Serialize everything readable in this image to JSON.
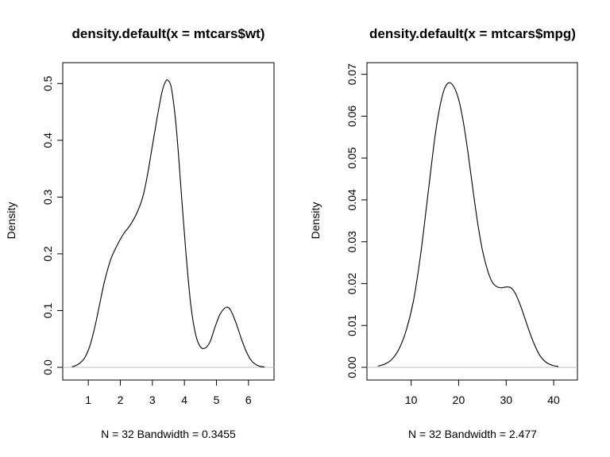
{
  "chart_data": [
    {
      "type": "line",
      "title": "density.default(x = mtcars$wt)",
      "xlabel": "N = 32   Bandwidth = 0.3455",
      "ylabel": "Density",
      "xlim": [
        0.5,
        6.5
      ],
      "ylim": [
        0,
        0.52
      ],
      "xticks": [
        1,
        2,
        3,
        4,
        5,
        6
      ],
      "yticks": [
        0.0,
        0.1,
        0.2,
        0.3,
        0.4,
        0.5
      ],
      "xtick_labels": [
        "1",
        "2",
        "3",
        "4",
        "5",
        "6"
      ],
      "ytick_labels": [
        "0.0",
        "0.1",
        "0.2",
        "0.3",
        "0.4",
        "0.5"
      ],
      "zero_line": true,
      "grid": false,
      "series": [
        {
          "x": [
            0.49,
            0.6,
            0.75,
            0.9,
            1.05,
            1.2,
            1.35,
            1.5,
            1.7,
            1.9,
            2.1,
            2.3,
            2.5,
            2.7,
            2.85,
            3.0,
            3.15,
            3.3,
            3.4,
            3.48,
            3.6,
            3.75,
            3.9,
            4.05,
            4.2,
            4.35,
            4.5,
            4.65,
            4.8,
            4.95,
            5.1,
            5.25,
            5.35,
            5.45,
            5.6,
            5.75,
            5.9,
            6.05,
            6.2,
            6.35,
            6.5
          ],
          "y": [
            0.001,
            0.003,
            0.008,
            0.018,
            0.038,
            0.07,
            0.11,
            0.15,
            0.19,
            0.215,
            0.235,
            0.25,
            0.27,
            0.3,
            0.34,
            0.39,
            0.44,
            0.485,
            0.502,
            0.506,
            0.49,
            0.42,
            0.31,
            0.2,
            0.11,
            0.058,
            0.036,
            0.034,
            0.045,
            0.07,
            0.092,
            0.104,
            0.106,
            0.1,
            0.08,
            0.055,
            0.032,
            0.015,
            0.006,
            0.002,
            0.0005
          ]
        }
      ]
    },
    {
      "type": "line",
      "title": "density.default(x = mtcars$mpg)",
      "xlabel": "N = 32   Bandwidth = 2.477",
      "ylabel": "Density",
      "xlim": [
        2.7,
        43
      ],
      "ylim": [
        0,
        0.0705
      ],
      "xticks": [
        10,
        20,
        30,
        40
      ],
      "yticks": [
        0.0,
        0.01,
        0.02,
        0.03,
        0.04,
        0.05,
        0.06,
        0.07
      ],
      "xtick_labels": [
        "10",
        "20",
        "30",
        "40"
      ],
      "ytick_labels": [
        "0.00",
        "0.01",
        "0.02",
        "0.03",
        "0.04",
        "0.05",
        "0.06",
        "0.07"
      ],
      "zero_line": true,
      "grid": false,
      "series": [
        {
          "x": [
            3.0,
            4.5,
            6.0,
            7.5,
            9.0,
            10.5,
            12.0,
            13.5,
            15.0,
            16.0,
            17.0,
            18.0,
            19.0,
            20.0,
            21.0,
            22.0,
            23.0,
            24.0,
            25.0,
            26.0,
            27.0,
            28.0,
            29.0,
            30.0,
            31.0,
            32.0,
            33.0,
            34.0,
            35.0,
            36.0,
            37.0,
            38.0,
            39.0,
            40.0,
            41.0
          ],
          "y": [
            0.0003,
            0.0008,
            0.002,
            0.0045,
            0.009,
            0.016,
            0.027,
            0.041,
            0.055,
            0.062,
            0.0665,
            0.068,
            0.067,
            0.064,
            0.0585,
            0.051,
            0.0425,
            0.0345,
            0.028,
            0.0235,
            0.0205,
            0.0193,
            0.019,
            0.0192,
            0.019,
            0.0175,
            0.0148,
            0.0115,
            0.0082,
            0.0053,
            0.003,
            0.0016,
            0.0008,
            0.0004,
            0.0002
          ]
        }
      ]
    }
  ]
}
